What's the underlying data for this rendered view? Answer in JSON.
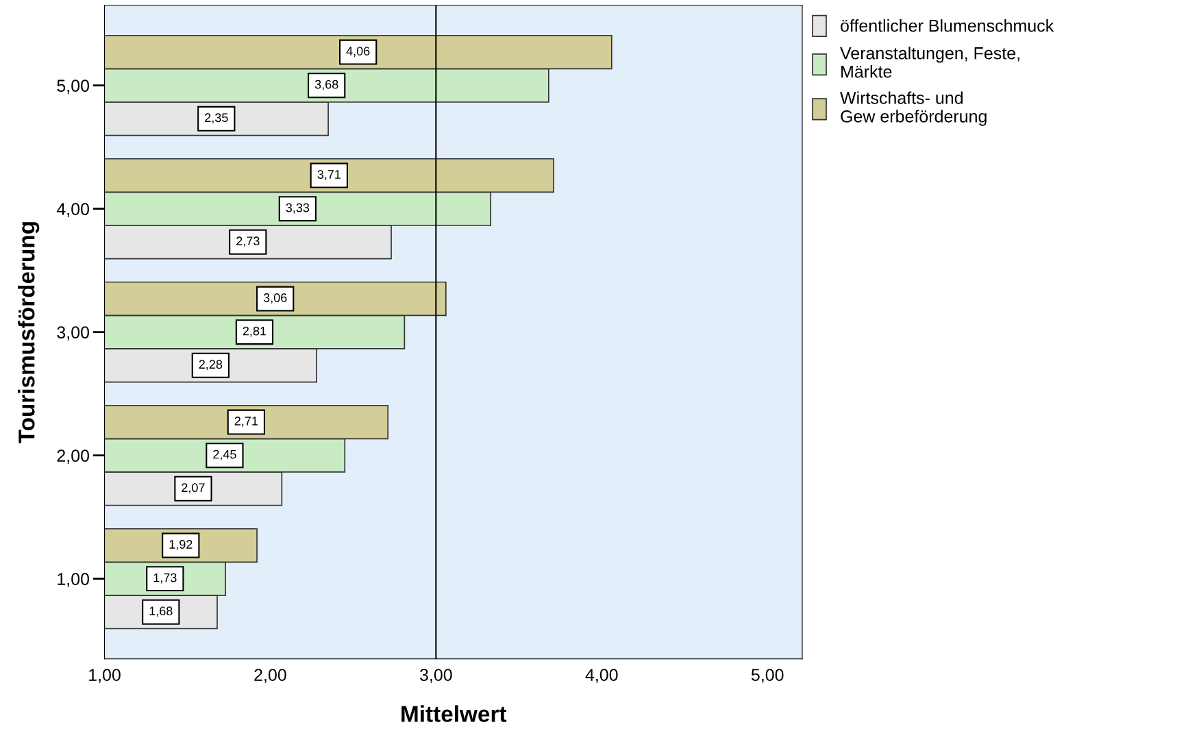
{
  "chart_data": {
    "type": "bar",
    "orientation": "horizontal",
    "xlabel": "Mittelwert",
    "ylabel": "Tourismusförderung",
    "categories": [
      "5,00",
      "4,00",
      "3,00",
      "2,00",
      "1,00"
    ],
    "series": [
      {
        "name": "öffentlicher Blumenschmuck",
        "color": "#e6e6e6",
        "values": [
          2.35,
          2.73,
          2.28,
          2.07,
          1.68
        ],
        "value_labels": [
          "2,35",
          "2,73",
          "2,28",
          "2,07",
          "1,68"
        ]
      },
      {
        "name": "Veranstaltungen, Feste,\nMärkte",
        "color": "#c9ebc4",
        "values": [
          3.68,
          3.33,
          2.81,
          2.45,
          1.73
        ],
        "value_labels": [
          "3,68",
          "3,33",
          "2,81",
          "2,45",
          "1,73"
        ]
      },
      {
        "name": "Wirtschafts- und\nGew erbeförderung",
        "color": "#d3cd98",
        "values": [
          4.06,
          3.71,
          3.06,
          2.71,
          1.92
        ],
        "value_labels": [
          "4,06",
          "3,71",
          "3,06",
          "2,71",
          "1,92"
        ]
      }
    ],
    "xlim": [
      1,
      5.21
    ],
    "xticks": [
      {
        "value": 1,
        "label": "1,00"
      },
      {
        "value": 2,
        "label": "2,00"
      },
      {
        "value": 3,
        "label": "3,00"
      },
      {
        "value": 4,
        "label": "4,00"
      },
      {
        "value": 5,
        "label": "5,00"
      }
    ],
    "ref_lines": [
      {
        "axis": "x",
        "value": 3,
        "label": null,
        "color": "#000000"
      }
    ],
    "legend": "top right",
    "grid": false
  }
}
